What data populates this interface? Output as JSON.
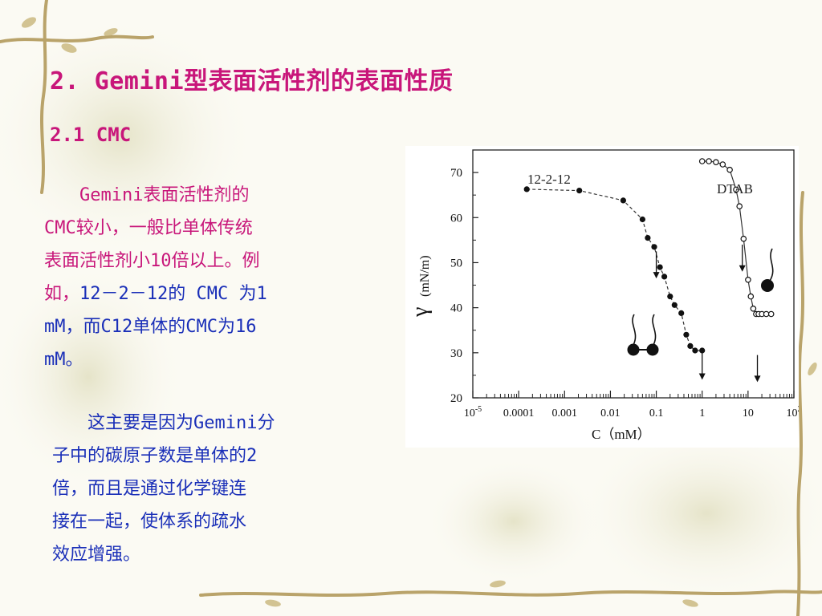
{
  "slide": {
    "title": "2. Gemini型表面活性剂的表面性质",
    "subtitle": "2.1 CMC",
    "para1": {
      "line1": "　　Gemini表面活性剂的",
      "line2": "CMC较小，一般比单体传统",
      "line3": "表面活性剂小10倍以上。例",
      "line4a": "如，",
      "line4b": "12－2－12的 CMC 为1",
      "line5": "mM，而C12单体的CMC为16",
      "line6": "mM。"
    },
    "para2": {
      "line1": "　　这主要是因为Gemini分",
      "line2": "子中的碳原子数是单体的2",
      "line3": "倍，而且是通过化学键连",
      "line4": "接在一起，使体系的疏水",
      "line5": "效应增强。"
    },
    "colors": {
      "title": "#c8167a",
      "body_blue": "#1a2fb8",
      "body_pink": "#c8167a",
      "vine": "#b9a36a"
    }
  },
  "chart_data": {
    "type": "scatter",
    "xscale": "log",
    "xlim": [
      1e-05,
      100
    ],
    "ylim": [
      20,
      75
    ],
    "xlabel": "C（mM）",
    "ylabel_symbol": "γ",
    "ylabel_unit": "(mN/m)",
    "x_tick_labels": [
      "10-5",
      "0.0001",
      "0.001",
      "0.01",
      "0.1",
      "1",
      "10",
      "102"
    ],
    "y_ticks": [
      20,
      30,
      40,
      50,
      60,
      70
    ],
    "series": [
      {
        "name": "12-2-12",
        "marker": "filled",
        "line": "dashed",
        "x": [
          0.00015,
          0.0021,
          0.019,
          0.05,
          0.065,
          0.09,
          0.12,
          0.15,
          0.2,
          0.25,
          0.35,
          0.45,
          0.55,
          0.7,
          1.0
        ],
        "y": [
          66.3,
          66.0,
          63.8,
          59.6,
          55.5,
          53.5,
          49.0,
          46.9,
          42.5,
          40.6,
          38.8,
          34.0,
          31.5,
          30.5,
          30.5
        ]
      },
      {
        "name": "DTAB",
        "marker": "open",
        "line": "solid",
        "x": [
          1.0,
          1.4,
          2.0,
          2.8,
          4.0,
          5.5,
          6.5,
          8.0,
          10.0,
          11.5,
          13.0,
          15.0,
          17.0,
          20.0,
          25.0,
          32.0
        ],
        "y": [
          72.5,
          72.5,
          72.3,
          71.8,
          70.6,
          66.2,
          62.5,
          55.3,
          46.2,
          42.5,
          39.8,
          38.6,
          38.6,
          38.6,
          38.6,
          38.6
        ]
      }
    ],
    "cmc_arrows": [
      {
        "series": "12-2-12",
        "x": 0.1,
        "y_from": 52.5,
        "y_to": 46.5
      },
      {
        "series": "12-2-12",
        "x": 1.0,
        "y_from": 30.0,
        "y_to": 24.0
      },
      {
        "series": "DTAB",
        "x": 7.5,
        "y_from": 54.0,
        "y_to": 48.0
      },
      {
        "series": "DTAB",
        "x": 16.0,
        "y_from": 29.5,
        "y_to": 23.5
      }
    ]
  }
}
